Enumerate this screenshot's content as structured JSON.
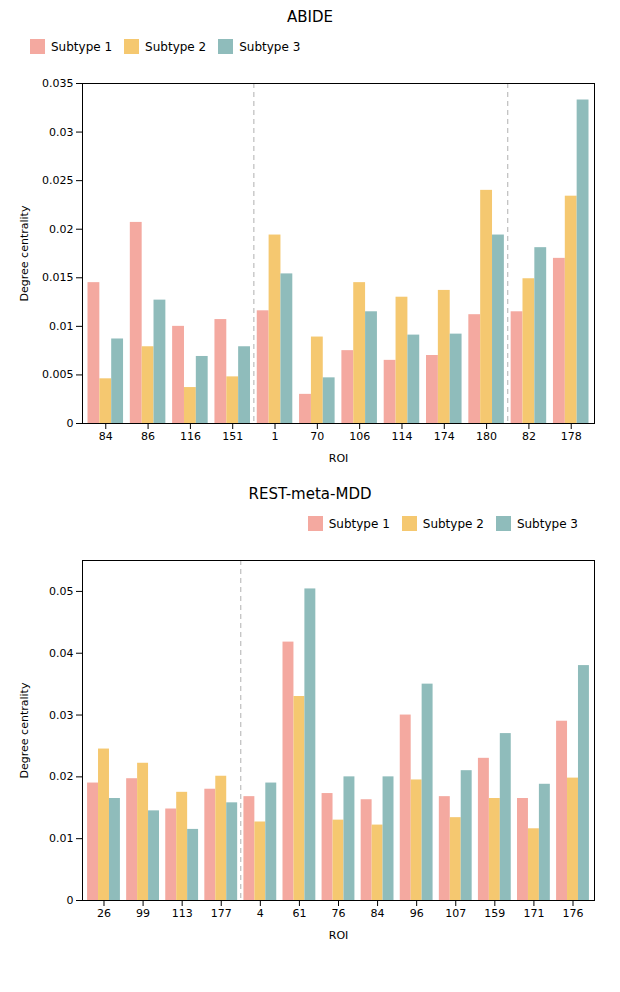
{
  "chart_data": [
    {
      "type": "bar",
      "title": "ABIDE",
      "categories": [
        "84",
        "86",
        "116",
        "151",
        "1",
        "70",
        "106",
        "114",
        "174",
        "180",
        "82",
        "178"
      ],
      "series": [
        {
          "name": "Subtype 1",
          "color": "#f4a9a0",
          "values": [
            0.0145,
            0.0207,
            0.01,
            0.0107,
            0.0116,
            0.003,
            0.0075,
            0.0065,
            0.007,
            0.0112,
            0.0115,
            0.017
          ]
        },
        {
          "name": "Subtype 2",
          "color": "#f5c870",
          "values": [
            0.0046,
            0.0079,
            0.0037,
            0.0048,
            0.0194,
            0.0089,
            0.0145,
            0.013,
            0.0137,
            0.024,
            0.0149,
            0.0234
          ]
        },
        {
          "name": "Subtype 3",
          "color": "#8fbcbb",
          "values": [
            0.0087,
            0.0127,
            0.0069,
            0.0079,
            0.0154,
            0.0047,
            0.0115,
            0.0091,
            0.0092,
            0.0194,
            0.0181,
            0.0333
          ]
        }
      ],
      "ylim": [
        0.0,
        0.035
      ],
      "yticks": [
        0.0,
        0.005,
        0.01,
        0.015,
        0.02,
        0.025,
        0.03,
        0.035
      ],
      "reference_lines": {
        "x": [
          3.5,
          9.5
        ],
        "color": "#b0b0b0",
        "line_style": "dashed"
      },
      "legend": "upper left",
      "grid": false,
      "xlabel": "ROI",
      "ylabel": "Degree centrality"
    },
    {
      "type": "bar",
      "title": "REST-meta-MDD",
      "categories": [
        "26",
        "99",
        "113",
        "177",
        "4",
        "61",
        "76",
        "84",
        "96",
        "107",
        "159",
        "171",
        "176"
      ],
      "series": [
        {
          "name": "Subtype 1",
          "color": "#f4a9a0",
          "values": [
            0.019,
            0.0197,
            0.0148,
            0.018,
            0.0168,
            0.0418,
            0.0173,
            0.0163,
            0.03,
            0.0168,
            0.023,
            0.0165,
            0.029
          ]
        },
        {
          "name": "Subtype 2",
          "color": "#f5c870",
          "values": [
            0.0245,
            0.0222,
            0.0175,
            0.0201,
            0.0127,
            0.033,
            0.013,
            0.0122,
            0.0195,
            0.0134,
            0.0165,
            0.0116,
            0.0198
          ]
        },
        {
          "name": "Subtype 3",
          "color": "#8fbcbb",
          "values": [
            0.0165,
            0.0145,
            0.0115,
            0.0158,
            0.019,
            0.0504,
            0.02,
            0.02,
            0.035,
            0.021,
            0.027,
            0.0188,
            0.038
          ]
        }
      ],
      "ylim": [
        0.0,
        0.055
      ],
      "yticks": [
        0.0,
        0.01,
        0.02,
        0.03,
        0.04,
        0.05
      ],
      "reference_lines": {
        "x": [
          3.5
        ],
        "color": "#b0b0b0",
        "line_style": "dashed"
      },
      "legend": "upper right",
      "grid": false,
      "xlabel": "ROI",
      "ylabel": "Degree centrality"
    }
  ]
}
